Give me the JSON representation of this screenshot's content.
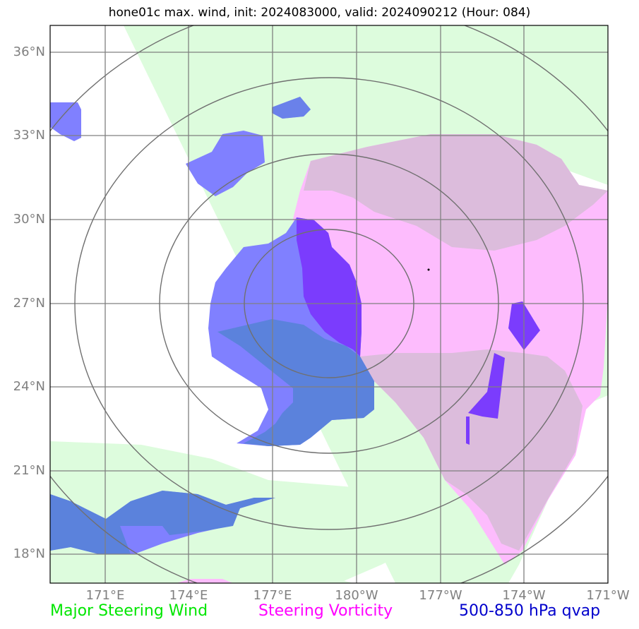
{
  "title": "hone01c max. wind, init: 2024083000, valid: 2024090212 (Hour: 084)",
  "lat_labels": [
    "36°N",
    "33°N",
    "30°N",
    "27°N",
    "24°N",
    "21°N",
    "18°N"
  ],
  "lon_labels": [
    "171°E",
    "174°E",
    "177°E",
    "180°W",
    "177°W",
    "174°W",
    "171°W"
  ],
  "legend": {
    "wind": "Major Steering Wind",
    "vort": "Steering Vorticity",
    "qvap": "500-850 hPa qvap"
  },
  "colors": {
    "wind": "#00e600",
    "vort": "#ff00ff",
    "qvap": "#0000cc",
    "wind_fill": "#ddfcdd",
    "vort_fill": "#fdbcfd",
    "qvap_fill": "#8080ff",
    "overlap_green_purple": "#dcbcdc",
    "overlap_green_blue": "#5b82dc",
    "overlap_purple_blue": "#7b3cfd"
  },
  "map": {
    "lat_range": [
      17,
      37
    ],
    "lon_range_east": [
      169,
      189
    ],
    "storm_center": {
      "lat": 28.2,
      "lon_east": 182.8
    },
    "range_ring_center": {
      "lat": 27,
      "lon_east": 180
    }
  }
}
